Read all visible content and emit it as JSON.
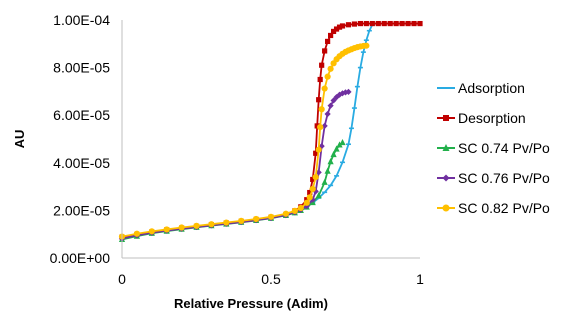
{
  "chart_data": {
    "type": "scatter",
    "xlabel": "Relative Pressure (Adim)",
    "ylabel": "AU",
    "xlim": [
      0,
      1
    ],
    "ylim": [
      0,
      0.0001
    ],
    "x_ticks": [
      0,
      0.5,
      1
    ],
    "x_tick_labels": [
      "0",
      "0.5",
      "1"
    ],
    "y_ticks": [
      0,
      2e-05,
      4e-05,
      6e-05,
      8e-05,
      0.0001
    ],
    "y_tick_labels": [
      "0.00E+00",
      "2.00E-05",
      "4.00E-05",
      "6.00E-05",
      "8.00E-05",
      "1.00E-04"
    ],
    "grid": false,
    "legend": "right",
    "series": [
      {
        "name": "Adsorption",
        "color": "#29abe2",
        "marker": "dash",
        "x": [
          0.0,
          0.05,
          0.1,
          0.15,
          0.2,
          0.25,
          0.3,
          0.35,
          0.4,
          0.45,
          0.5,
          0.55,
          0.58,
          0.6,
          0.62,
          0.64,
          0.66,
          0.68,
          0.7,
          0.72,
          0.74,
          0.76,
          0.77,
          0.78,
          0.79,
          0.8,
          0.81,
          0.82,
          0.83,
          0.84
        ],
        "y": [
          8.5e-06,
          9.8e-06,
          1.08e-05,
          1.17e-05,
          1.25e-05,
          1.32e-05,
          1.39e-05,
          1.46e-05,
          1.53e-05,
          1.61e-05,
          1.7e-05,
          1.82e-05,
          1.93e-05,
          2.03e-05,
          2.16e-05,
          2.32e-05,
          2.52e-05,
          2.76e-05,
          3.05e-05,
          3.45e-05,
          4.02e-05,
          4.78e-05,
          5.45e-05,
          6.3e-05,
          7.2e-05,
          8e-05,
          8.65e-05,
          9.15e-05,
          9.55e-05,
          9.8e-05
        ]
      },
      {
        "name": "Desorption",
        "color": "#c00000",
        "marker": "square",
        "x": [
          1.0,
          0.98,
          0.96,
          0.94,
          0.92,
          0.9,
          0.88,
          0.86,
          0.84,
          0.82,
          0.8,
          0.78,
          0.76,
          0.74,
          0.73,
          0.72,
          0.71,
          0.7,
          0.69,
          0.68,
          0.67,
          0.665,
          0.66,
          0.655,
          0.65,
          0.64,
          0.63,
          0.62,
          0.6,
          0.58,
          0.55,
          0.5,
          0.45,
          0.4,
          0.35,
          0.3,
          0.25,
          0.2,
          0.15,
          0.1,
          0.05,
          0.0
        ],
        "y": [
          9.85e-05,
          9.85e-05,
          9.85e-05,
          9.85e-05,
          9.85e-05,
          9.85e-05,
          9.85e-05,
          9.85e-05,
          9.85e-05,
          9.85e-05,
          9.85e-05,
          9.83e-05,
          9.8e-05,
          9.75e-05,
          9.7e-05,
          9.62e-05,
          9.52e-05,
          9.35e-05,
          9.1e-05,
          8.7e-05,
          8.1e-05,
          7.5e-05,
          6.65e-05,
          5.55e-05,
          4.4e-05,
          3.3e-05,
          2.75e-05,
          2.45e-05,
          2.15e-05,
          1.98e-05,
          1.83e-05,
          1.71e-05,
          1.62e-05,
          1.54e-05,
          1.47e-05,
          1.4e-05,
          1.33e-05,
          1.26e-05,
          1.18e-05,
          1.09e-05,
          9.9e-06,
          8.8e-06
        ]
      },
      {
        "name": "SC 0.74 Pv/Po",
        "color": "#22b04b",
        "marker": "triangle",
        "x": [
          0.0,
          0.05,
          0.1,
          0.15,
          0.2,
          0.25,
          0.3,
          0.35,
          0.4,
          0.45,
          0.5,
          0.55,
          0.58,
          0.6,
          0.62,
          0.64,
          0.66,
          0.68,
          0.69,
          0.7,
          0.71,
          0.72,
          0.73,
          0.74
        ],
        "y": [
          7.8e-06,
          9.2e-06,
          1.04e-05,
          1.13e-05,
          1.21e-05,
          1.29e-05,
          1.36e-05,
          1.43e-05,
          1.5e-05,
          1.58e-05,
          1.67e-05,
          1.79e-05,
          1.9e-05,
          2e-05,
          2.14e-05,
          2.33e-05,
          2.62e-05,
          3.18e-05,
          3.65e-05,
          4.05e-05,
          4.35e-05,
          4.58e-05,
          4.75e-05,
          4.85e-05
        ]
      },
      {
        "name": "SC 0.76 Pv/Po",
        "color": "#7030a0",
        "marker": "diamond",
        "x": [
          0.0,
          0.05,
          0.1,
          0.15,
          0.2,
          0.25,
          0.3,
          0.35,
          0.4,
          0.45,
          0.5,
          0.55,
          0.58,
          0.6,
          0.62,
          0.64,
          0.65,
          0.66,
          0.67,
          0.68,
          0.69,
          0.7,
          0.71,
          0.72,
          0.73,
          0.74,
          0.75,
          0.76
        ],
        "y": [
          8.2e-06,
          9.5e-06,
          1.06e-05,
          1.15e-05,
          1.23e-05,
          1.3e-05,
          1.37e-05,
          1.44e-05,
          1.51e-05,
          1.59e-05,
          1.68e-05,
          1.8e-05,
          1.92e-05,
          2.03e-05,
          2.18e-05,
          2.45e-05,
          2.8e-05,
          3.6e-05,
          4.7e-05,
          5.55e-05,
          6.05e-05,
          6.4e-05,
          6.62e-05,
          6.76e-05,
          6.86e-05,
          6.92e-05,
          6.96e-05,
          6.98e-05
        ]
      },
      {
        "name": "SC 0.82 Pv/Po",
        "color": "#ffc000",
        "marker": "circle",
        "x": [
          0.0,
          0.05,
          0.1,
          0.15,
          0.2,
          0.25,
          0.3,
          0.35,
          0.4,
          0.45,
          0.5,
          0.55,
          0.58,
          0.6,
          0.62,
          0.63,
          0.64,
          0.65,
          0.66,
          0.665,
          0.67,
          0.68,
          0.69,
          0.7,
          0.71,
          0.72,
          0.73,
          0.74,
          0.75,
          0.76,
          0.77,
          0.78,
          0.79,
          0.8,
          0.81,
          0.82
        ],
        "y": [
          9e-06,
          1.02e-05,
          1.12e-05,
          1.2e-05,
          1.28e-05,
          1.35e-05,
          1.42e-05,
          1.49e-05,
          1.56e-05,
          1.64e-05,
          1.73e-05,
          1.86e-05,
          1.98e-05,
          2.1e-05,
          2.32e-05,
          2.55e-05,
          2.9e-05,
          3.4e-05,
          4.55e-05,
          5.5e-05,
          6.25e-05,
          7.12e-05,
          7.62e-05,
          7.95e-05,
          8.18e-05,
          8.35e-05,
          8.48e-05,
          8.58e-05,
          8.66e-05,
          8.72e-05,
          8.77e-05,
          8.82e-05,
          8.86e-05,
          8.89e-05,
          8.91e-05,
          8.92e-05
        ]
      }
    ]
  }
}
